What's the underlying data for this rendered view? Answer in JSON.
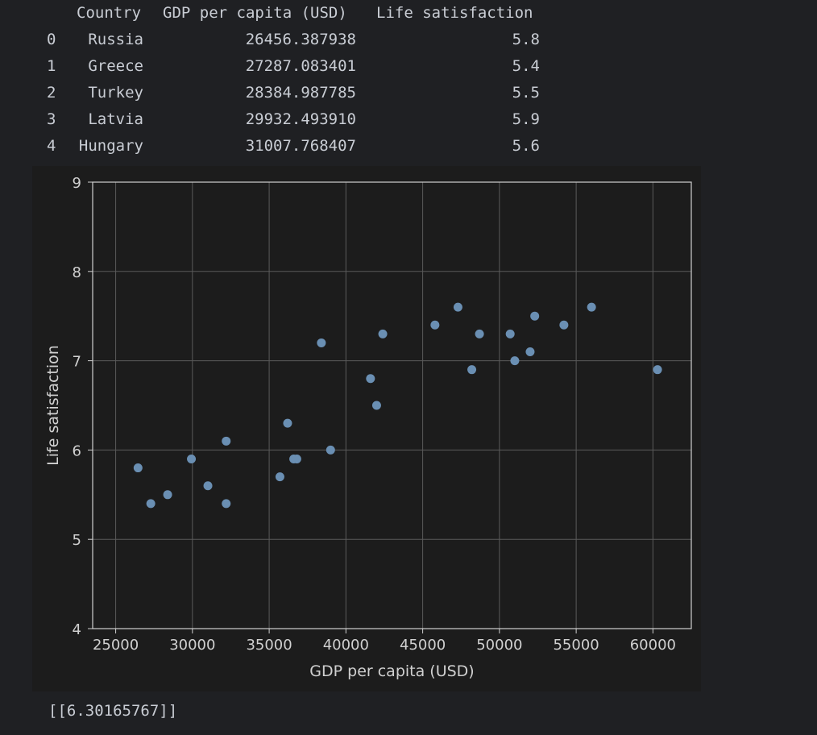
{
  "dataframe": {
    "columns": [
      "Country",
      "GDP per capita (USD)",
      "Life satisfaction"
    ],
    "rows": [
      {
        "index": "0",
        "country": "Russia",
        "gdp": "26456.387938",
        "life": "5.8"
      },
      {
        "index": "1",
        "country": "Greece",
        "gdp": "27287.083401",
        "life": "5.4"
      },
      {
        "index": "2",
        "country": "Turkey",
        "gdp": "28384.987785",
        "life": "5.5"
      },
      {
        "index": "3",
        "country": "Latvia",
        "gdp": "29932.493910",
        "life": "5.9"
      },
      {
        "index": "4",
        "country": "Hungary",
        "gdp": "31007.768407",
        "life": "5.6"
      }
    ]
  },
  "result_text": "[[6.30165767]]",
  "chart_data": {
    "type": "scatter",
    "title": "",
    "xlabel": "GDP per capita (USD)",
    "ylabel": "Life satisfaction",
    "xlim": [
      23500,
      62500
    ],
    "ylim": [
      4,
      9
    ],
    "xticks": [
      25000,
      30000,
      35000,
      40000,
      45000,
      50000,
      55000,
      60000
    ],
    "yticks": [
      4,
      5,
      6,
      7,
      8,
      9
    ],
    "grid": true,
    "marker_color": "#6a8fb3",
    "background_color": "#1c1c1c",
    "grid_color": "#5a5a5a",
    "axis_color": "#d0d0d0",
    "points": [
      {
        "x": 26456,
        "y": 5.8
      },
      {
        "x": 27287,
        "y": 5.4
      },
      {
        "x": 28385,
        "y": 5.5
      },
      {
        "x": 29932,
        "y": 5.9
      },
      {
        "x": 31008,
        "y": 5.6
      },
      {
        "x": 32200,
        "y": 6.1
      },
      {
        "x": 32200,
        "y": 5.4
      },
      {
        "x": 35700,
        "y": 5.7
      },
      {
        "x": 36200,
        "y": 6.3
      },
      {
        "x": 36600,
        "y": 5.9
      },
      {
        "x": 36800,
        "y": 5.9
      },
      {
        "x": 38400,
        "y": 7.2
      },
      {
        "x": 39000,
        "y": 6.0
      },
      {
        "x": 41600,
        "y": 6.8
      },
      {
        "x": 42000,
        "y": 6.5
      },
      {
        "x": 42400,
        "y": 7.3
      },
      {
        "x": 45800,
        "y": 7.4
      },
      {
        "x": 47300,
        "y": 7.6
      },
      {
        "x": 48200,
        "y": 6.9
      },
      {
        "x": 48700,
        "y": 7.3
      },
      {
        "x": 50700,
        "y": 7.3
      },
      {
        "x": 51000,
        "y": 7.0
      },
      {
        "x": 52000,
        "y": 7.1
      },
      {
        "x": 52300,
        "y": 7.5
      },
      {
        "x": 54200,
        "y": 7.4
      },
      {
        "x": 56000,
        "y": 7.6
      },
      {
        "x": 60300,
        "y": 6.9
      }
    ]
  }
}
